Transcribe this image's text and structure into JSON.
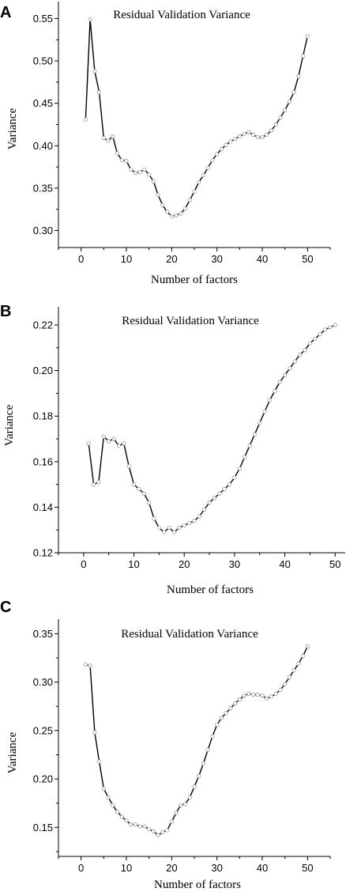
{
  "chart_data": [
    {
      "panel": "A",
      "type": "line",
      "title": "Residual Validation Variance",
      "xlabel": "Number of factors",
      "ylabel": "Variance",
      "xlim": [
        -5,
        55
      ],
      "ylim": [
        0.28,
        0.57
      ],
      "xticks": [
        0,
        10,
        20,
        30,
        40,
        50
      ],
      "yticks": [
        0.3,
        0.35,
        0.4,
        0.45,
        0.5,
        0.55
      ],
      "xtick_labels": [
        "0",
        "10",
        "20",
        "30",
        "40",
        "50"
      ],
      "ytick_labels": [
        "0.30",
        "0.35",
        "0.40",
        "0.45",
        "0.50",
        "0.55"
      ],
      "grid": false,
      "x": [
        1,
        2,
        3,
        4,
        5,
        6,
        7,
        8,
        9,
        10,
        11,
        12,
        13,
        14,
        15,
        16,
        17,
        18,
        19,
        20,
        21,
        22,
        23,
        24,
        25,
        26,
        27,
        28,
        29,
        30,
        31,
        32,
        33,
        34,
        35,
        36,
        37,
        38,
        39,
        40,
        41,
        42,
        43,
        44,
        45,
        46,
        47,
        48,
        49,
        50
      ],
      "values": [
        0.431,
        0.549,
        0.488,
        0.463,
        0.409,
        0.406,
        0.411,
        0.391,
        0.383,
        0.382,
        0.372,
        0.368,
        0.369,
        0.372,
        0.366,
        0.358,
        0.342,
        0.33,
        0.322,
        0.317,
        0.318,
        0.32,
        0.326,
        0.336,
        0.346,
        0.357,
        0.365,
        0.374,
        0.383,
        0.39,
        0.396,
        0.401,
        0.405,
        0.408,
        0.411,
        0.414,
        0.416,
        0.413,
        0.41,
        0.41,
        0.413,
        0.418,
        0.425,
        0.433,
        0.442,
        0.452,
        0.463,
        0.482,
        0.506,
        0.529
      ]
    },
    {
      "panel": "B",
      "type": "line",
      "title": "Residual Validation Variance",
      "xlabel": "Number of factors",
      "ylabel": "Variance",
      "xlim": [
        -5,
        52
      ],
      "ylim": [
        0.12,
        0.228
      ],
      "xticks": [
        0,
        10,
        20,
        30,
        40,
        50
      ],
      "yticks": [
        0.12,
        0.14,
        0.16,
        0.18,
        0.2,
        0.22
      ],
      "xtick_labels": [
        "0",
        "10",
        "20",
        "30",
        "40",
        "50"
      ],
      "ytick_labels": [
        "0.12",
        "0.14",
        "0.16",
        "0.18",
        "0.20",
        "0.22"
      ],
      "grid": false,
      "x": [
        1,
        2,
        3,
        4,
        5,
        6,
        7,
        8,
        9,
        10,
        11,
        12,
        13,
        14,
        15,
        16,
        17,
        18,
        19,
        20,
        21,
        22,
        23,
        24,
        25,
        26,
        27,
        28,
        29,
        30,
        31,
        32,
        33,
        34,
        35,
        36,
        37,
        38,
        39,
        40,
        41,
        42,
        43,
        44,
        45,
        46,
        47,
        48,
        49,
        50
      ],
      "values": [
        0.168,
        0.15,
        0.151,
        0.171,
        0.169,
        0.17,
        0.167,
        0.168,
        0.158,
        0.15,
        0.148,
        0.146,
        0.142,
        0.135,
        0.131,
        0.129,
        0.131,
        0.129,
        0.131,
        0.132,
        0.133,
        0.134,
        0.136,
        0.139,
        0.142,
        0.144,
        0.146,
        0.148,
        0.15,
        0.153,
        0.157,
        0.162,
        0.167,
        0.172,
        0.177,
        0.182,
        0.187,
        0.191,
        0.195,
        0.198,
        0.201,
        0.204,
        0.207,
        0.209,
        0.212,
        0.214,
        0.216,
        0.218,
        0.219,
        0.22
      ]
    },
    {
      "panel": "C",
      "type": "line",
      "title": "Residual Validation Variance",
      "xlabel": "Number of factors",
      "ylabel": "Variance",
      "xlim": [
        -5,
        55
      ],
      "ylim": [
        0.12,
        0.365
      ],
      "xticks": [
        0,
        10,
        20,
        30,
        40,
        50
      ],
      "yticks": [
        0.15,
        0.2,
        0.25,
        0.3,
        0.35
      ],
      "xtick_labels": [
        "0",
        "10",
        "20",
        "30",
        "40",
        "50"
      ],
      "ytick_labels": [
        "0.15",
        "0.20",
        "0.25",
        "0.30",
        "0.35"
      ],
      "grid": false,
      "x": [
        1,
        2,
        3,
        4,
        5,
        6,
        7,
        8,
        9,
        10,
        11,
        12,
        13,
        14,
        15,
        16,
        17,
        18,
        19,
        20,
        21,
        22,
        23,
        24,
        25,
        26,
        27,
        28,
        29,
        30,
        31,
        32,
        33,
        34,
        35,
        36,
        37,
        38,
        39,
        40,
        41,
        42,
        43,
        44,
        45,
        46,
        47,
        48,
        49,
        50
      ],
      "values": [
        0.318,
        0.317,
        0.248,
        0.218,
        0.19,
        0.181,
        0.173,
        0.166,
        0.161,
        0.157,
        0.153,
        0.153,
        0.151,
        0.151,
        0.148,
        0.146,
        0.142,
        0.145,
        0.147,
        0.156,
        0.165,
        0.173,
        0.174,
        0.181,
        0.192,
        0.203,
        0.216,
        0.23,
        0.244,
        0.256,
        0.263,
        0.268,
        0.273,
        0.278,
        0.282,
        0.286,
        0.288,
        0.287,
        0.287,
        0.286,
        0.283,
        0.285,
        0.288,
        0.292,
        0.298,
        0.305,
        0.312,
        0.319,
        0.327,
        0.337
      ]
    }
  ]
}
